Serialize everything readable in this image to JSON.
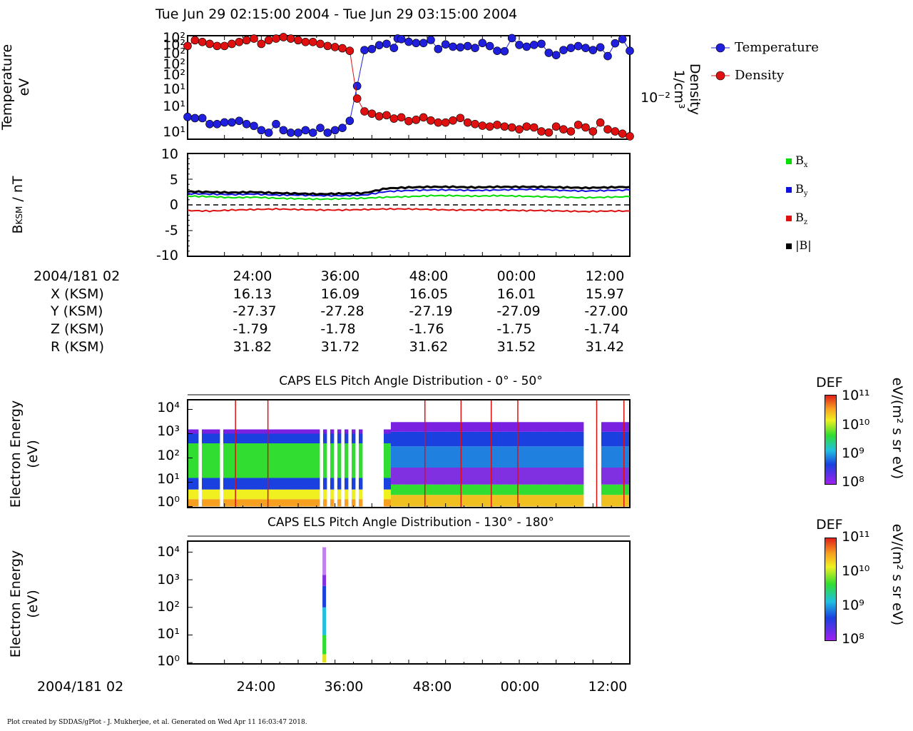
{
  "header": {
    "title": "Tue Jun 29 02:15:00 2004 - Tue Jun 29 03:15:00 2004"
  },
  "footer": {
    "credit": "Plot created by SDDAS/gPlot - J. Mukherjee, et al.  Generated on Wed Apr 11 16:03:47 2018."
  },
  "colors": {
    "temperature": "#1f1fdd",
    "density": "#e01010",
    "bx": "#00dd00",
    "by": "#1010dd",
    "bz": "#dd1010",
    "btot": "#000000"
  },
  "panel1": {
    "ylabel_line1": "Temperature",
    "ylabel_line2": "eV",
    "yticks_left": [
      "10²",
      "10²",
      "10²",
      "10²",
      "10²",
      "10¹",
      "10¹",
      "10¹"
    ],
    "ylabel_right_line1": "Density",
    "ylabel_right_line2": "1/cm³",
    "ytick_right": "10⁻²",
    "legend": [
      {
        "name": "Temperature"
      },
      {
        "name": "Density"
      }
    ]
  },
  "panel2": {
    "ylabel": "BKSM / nT",
    "yticks": [
      "10",
      "5",
      "0",
      "-5",
      "-10"
    ],
    "legend": [
      {
        "name": "Bx"
      },
      {
        "name": "By"
      },
      {
        "name": "Bz"
      },
      {
        "name": "|B|"
      }
    ]
  },
  "ephemeris": {
    "start_label": "2004/181 02",
    "time_ticks": [
      "24:00",
      "36:00",
      "48:00",
      "00:00",
      "12:00"
    ],
    "rows": [
      {
        "label": "X (KSM)",
        "values": [
          "16.13",
          "16.09",
          "16.05",
          "16.01",
          "15.97"
        ]
      },
      {
        "label": "Y (KSM)",
        "values": [
          "-27.37",
          "-27.28",
          "-27.19",
          "-27.09",
          "-27.00"
        ]
      },
      {
        "label": "Z (KSM)",
        "values": [
          "-1.79",
          "-1.78",
          "-1.76",
          "-1.75",
          "-1.74"
        ]
      },
      {
        "label": "R (KSM)",
        "values": [
          "31.82",
          "31.72",
          "31.62",
          "31.52",
          "31.42"
        ]
      }
    ]
  },
  "panel3": {
    "title": "CAPS ELS Pitch Angle Distribution - 0° - 50°",
    "ylabel_line1": "Electron Energy",
    "ylabel_line2": "(eV)",
    "yticks": [
      "10⁴",
      "10³",
      "10²",
      "10¹",
      "10⁰"
    ],
    "colorbar": {
      "label": "DEF",
      "unit": "eV/(m² s sr eV)",
      "ticks": [
        "10¹¹",
        "10¹⁰",
        "10⁹",
        "10⁸"
      ]
    }
  },
  "panel4": {
    "title": "CAPS ELS Pitch Angle Distribution - 130° - 180°",
    "ylabel_line1": "Electron Energy",
    "ylabel_line2": "(eV)",
    "yticks": [
      "10⁴",
      "10³",
      "10²",
      "10¹",
      "10⁰"
    ],
    "colorbar": {
      "label": "DEF",
      "unit": "eV/(m² s sr eV)",
      "ticks": [
        "10¹¹",
        "10¹⁰",
        "10⁹",
        "10⁸"
      ]
    },
    "xaxis_start": "2004/181 02",
    "xticks": [
      "24:00",
      "36:00",
      "48:00",
      "00:00",
      "12:00"
    ]
  },
  "chart_data": [
    {
      "type": "scatter",
      "title": "",
      "x_unit": "minutes after 02:15",
      "xlim": [
        0,
        60
      ],
      "series": [
        {
          "name": "Temperature",
          "x": [
            0,
            1,
            2,
            3,
            4,
            5,
            6,
            7,
            8,
            9,
            10,
            11,
            12,
            13,
            14,
            15,
            16,
            17,
            18,
            19,
            20,
            21,
            22,
            23,
            24,
            25,
            26,
            27,
            28,
            28.5,
            29,
            30,
            31,
            32,
            33,
            34,
            35,
            36,
            37,
            38,
            39,
            40,
            41,
            42,
            43,
            44,
            45,
            46,
            47,
            48,
            49,
            50,
            51,
            52,
            53,
            54,
            55,
            56,
            57,
            58,
            59,
            60
          ],
          "y": [
            1.6,
            1.5,
            1.5,
            1.1,
            1.1,
            1.2,
            1.2,
            1.3,
            1.1,
            1.0,
            0.8,
            0.7,
            1.1,
            0.8,
            0.7,
            0.7,
            0.8,
            0.7,
            0.9,
            0.7,
            0.8,
            0.9,
            1.3,
            8.0,
            52,
            55,
            67,
            72,
            58,
            95,
            92,
            80,
            75,
            75,
            88,
            55,
            70,
            62,
            60,
            64,
            58,
            75,
            64,
            50,
            49,
            97,
            68,
            62,
            68,
            72,
            45,
            40,
            52,
            58,
            64,
            58,
            52,
            60,
            38,
            74,
            92,
            50
          ]
        },
        {
          "name": "Density",
          "x": [
            0,
            1,
            2,
            3,
            4,
            5,
            6,
            7,
            8,
            9,
            10,
            11,
            12,
            13,
            14,
            15,
            16,
            17,
            18,
            19,
            20,
            21,
            22,
            23,
            24,
            25,
            26,
            27,
            28,
            29,
            30,
            31,
            32,
            33,
            34,
            35,
            36,
            37,
            38,
            39,
            40,
            41,
            42,
            43,
            44,
            45,
            46,
            47,
            48,
            49,
            50,
            51,
            52,
            53,
            54,
            55,
            56,
            57,
            58,
            59,
            60
          ],
          "y": [
            0.01,
            0.013,
            0.012,
            0.011,
            0.01,
            0.01,
            0.011,
            0.012,
            0.013,
            0.014,
            0.011,
            0.013,
            0.014,
            0.015,
            0.014,
            0.013,
            0.012,
            0.012,
            0.011,
            0.01,
            0.0095,
            0.009,
            0.008,
            0.0009,
            0.0005,
            0.00045,
            0.0004,
            0.00042,
            0.00036,
            0.00038,
            0.00032,
            0.00034,
            0.00038,
            0.00033,
            0.0003,
            0.0003,
            0.00033,
            0.00037,
            0.0003,
            0.00028,
            0.00026,
            0.00025,
            0.00027,
            0.00025,
            0.00024,
            0.00022,
            0.00025,
            0.00024,
            0.0002,
            0.00019,
            0.00025,
            0.00022,
            0.0002,
            0.00027,
            0.00024,
            0.0002,
            0.0003,
            0.00022,
            0.0002,
            0.00018,
            0.00016
          ]
        }
      ]
    },
    {
      "type": "line",
      "title": "",
      "ylabel": "BKSM / nT",
      "x_unit": "minutes after 02:15",
      "ylim": [
        -10,
        10
      ],
      "x": [
        0,
        3,
        6,
        9,
        12,
        15,
        18,
        21,
        24,
        27,
        30,
        33,
        36,
        39,
        42,
        45,
        48,
        51,
        54,
        57,
        60
      ],
      "series": [
        {
          "name": "Bx",
          "values": [
            1.7,
            1.6,
            1.4,
            1.5,
            1.3,
            1.2,
            1.1,
            1.2,
            1.3,
            1.5,
            1.6,
            1.8,
            1.8,
            1.7,
            1.8,
            1.7,
            1.6,
            1.5,
            1.4,
            1.5,
            1.6
          ]
        },
        {
          "name": "By",
          "values": [
            2.2,
            2.1,
            2.0,
            2.1,
            1.9,
            1.9,
            1.8,
            1.8,
            1.9,
            2.6,
            2.8,
            2.9,
            2.9,
            2.8,
            2.9,
            3.0,
            3.0,
            2.8,
            2.7,
            2.8,
            2.9
          ]
        },
        {
          "name": "Bz",
          "values": [
            -1.1,
            -1.2,
            -1.0,
            -0.9,
            -0.8,
            -0.9,
            -1.0,
            -1.0,
            -0.9,
            -0.8,
            -0.8,
            -0.9,
            -1.0,
            -1.0,
            -1.0,
            -1.1,
            -1.1,
            -1.2,
            -1.3,
            -1.2,
            -1.2
          ]
        },
        {
          "name": "|B|",
          "values": [
            2.6,
            2.5,
            2.4,
            2.5,
            2.3,
            2.2,
            2.1,
            2.2,
            2.3,
            3.2,
            3.4,
            3.5,
            3.5,
            3.4,
            3.5,
            3.5,
            3.5,
            3.4,
            3.3,
            3.4,
            3.5
          ]
        }
      ]
    },
    {
      "type": "heatmap",
      "title": "CAPS ELS Pitch Angle Distribution - 0° - 50°",
      "ylabel": "Electron Energy (eV)",
      "yscale": "log",
      "ylim": [
        0.9,
        25000
      ],
      "colorbar_label": "DEF",
      "colorbar_unit": "eV/(m² s sr eV)",
      "colorbar_range": [
        100000000.0,
        100000000000.0
      ]
    },
    {
      "type": "heatmap",
      "title": "CAPS ELS Pitch Angle Distribution - 130° - 180°",
      "ylabel": "Electron Energy (eV)",
      "yscale": "log",
      "ylim": [
        0.9,
        25000
      ],
      "colorbar_label": "DEF",
      "colorbar_unit": "eV/(m² s sr eV)",
      "colorbar_range": [
        100000000.0,
        100000000000.0
      ]
    }
  ]
}
